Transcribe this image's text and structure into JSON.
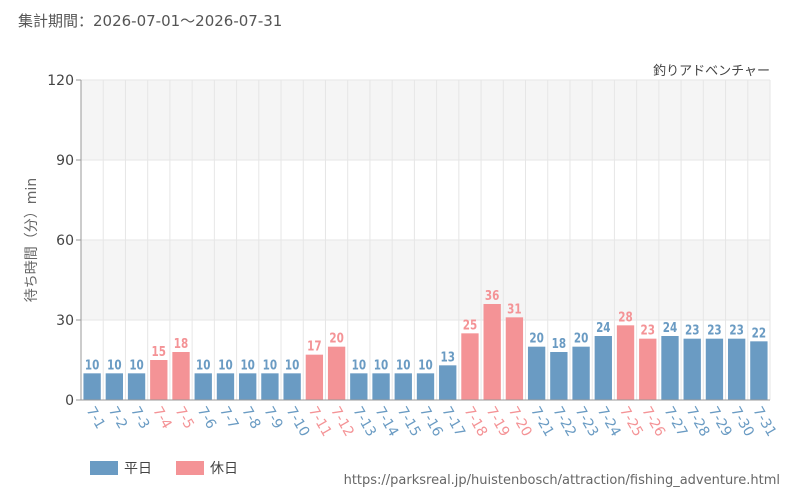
{
  "header": {
    "period_text": "集計期間：2026-07-01～2026-07-31"
  },
  "footer": {
    "source_url": "https://parksreal.jp/huistenbosch/attraction/fishing_adventure.html",
    "legend": [
      {
        "label": "平日",
        "color": "#6a9bc3"
      },
      {
        "label": "休日",
        "color": "#f49396"
      }
    ]
  },
  "colors": {
    "weekday": "#6a9bc3",
    "holiday": "#f49396"
  },
  "chart_data": {
    "type": "bar",
    "title": "釣りアドベンチャー",
    "ylabel": "待ち時間（分）min",
    "xlabel": "",
    "ylim": [
      0,
      120
    ],
    "yticks": [
      0,
      30,
      60,
      90,
      120
    ],
    "grid": true,
    "legend_position": "bottom-left",
    "categories": [
      "7-1",
      "7-2",
      "7-3",
      "7-4",
      "7-5",
      "7-6",
      "7-7",
      "7-8",
      "7-9",
      "7-10",
      "7-11",
      "7-12",
      "7-13",
      "7-14",
      "7-15",
      "7-16",
      "7-17",
      "7-18",
      "7-19",
      "7-20",
      "7-21",
      "7-22",
      "7-23",
      "7-24",
      "7-25",
      "7-26",
      "7-27",
      "7-28",
      "7-29",
      "7-30",
      "7-31"
    ],
    "values": [
      10,
      10,
      10,
      15,
      18,
      10,
      10,
      10,
      10,
      10,
      17,
      20,
      10,
      10,
      10,
      10,
      13,
      25,
      36,
      31,
      20,
      18,
      20,
      24,
      28,
      23,
      24,
      23,
      23,
      23,
      22
    ],
    "day_type": [
      "平日",
      "平日",
      "平日",
      "休日",
      "休日",
      "平日",
      "平日",
      "平日",
      "平日",
      "平日",
      "休日",
      "休日",
      "平日",
      "平日",
      "平日",
      "平日",
      "平日",
      "休日",
      "休日",
      "休日",
      "平日",
      "平日",
      "平日",
      "平日",
      "休日",
      "休日",
      "平日",
      "平日",
      "平日",
      "平日",
      "平日"
    ]
  }
}
